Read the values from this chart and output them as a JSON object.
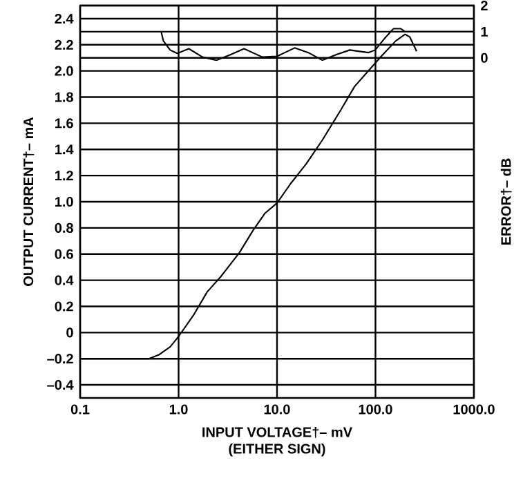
{
  "chart_data": {
    "type": "line",
    "xlabel": "INPUT VOLTAGE†– mV",
    "annotations": [
      "(EITHER SIGN)"
    ],
    "ylabel": "OUTPUT CURRENT†– mA",
    "y2label": "ERROR†– dB",
    "log": "x",
    "grid": true,
    "xlim": [
      0.1,
      1000
    ],
    "xticks": [
      {
        "value": 0.1,
        "label": "0.1"
      },
      {
        "value": 1,
        "label": "1.0"
      },
      {
        "value": 10,
        "label": "10.0"
      },
      {
        "value": 100,
        "label": "100.0"
      },
      {
        "value": 1000,
        "label": "1000.0"
      }
    ],
    "ylim": [
      -0.5,
      2.5
    ],
    "yticks": [
      {
        "value": -0.4,
        "label": "–0.4"
      },
      {
        "value": -0.2,
        "label": "–0.2"
      },
      {
        "value": 0,
        "label": "0"
      },
      {
        "value": 0.2,
        "label": "0.2"
      },
      {
        "value": 0.4,
        "label": "0.4"
      },
      {
        "value": 0.6,
        "label": "0.6"
      },
      {
        "value": 0.8,
        "label": "0.8"
      },
      {
        "value": 1.0,
        "label": "1.0"
      },
      {
        "value": 1.2,
        "label": "1.2"
      },
      {
        "value": 1.4,
        "label": "1.4"
      },
      {
        "value": 1.6,
        "label": "1.6"
      },
      {
        "value": 1.8,
        "label": "1.8"
      },
      {
        "value": 2.0,
        "label": "2.0"
      },
      {
        "value": 2.2,
        "label": "2.2"
      },
      {
        "value": 2.4,
        "label": "2.4"
      }
    ],
    "y2lim": [
      -13,
      2
    ],
    "y2ticks": [
      0,
      1,
      2
    ],
    "series": [
      {
        "color": "#000000",
        "x": [
          0.1,
          0.5,
          0.63,
          0.82,
          1.0,
          1.41,
          1.95,
          2.7,
          4.14,
          5.7,
          7.5,
          10,
          13.8,
          19.8,
          28.8,
          44.3,
          61.2,
          84.5,
          117,
          161,
          200,
          223,
          262
        ],
        "values": [
          -0.2,
          -0.2,
          -0.17,
          -0.11,
          -0.03,
          0.13,
          0.31,
          0.43,
          0.61,
          0.78,
          0.91,
          0.99,
          1.14,
          1.29,
          1.47,
          1.7,
          1.88,
          2.0,
          2.12,
          2.23,
          2.28,
          2.26,
          2.15
        ]
      },
      {
        "color": "#000000",
        "axis": "y2",
        "x": [
          0.665,
          0.7,
          0.82,
          0.97,
          1.27,
          1.75,
          2.42,
          3.35,
          4.62,
          7.1,
          10,
          15.1,
          20.8,
          28.8,
          39.7,
          54.8,
          84.5,
          99.3,
          123,
          153,
          180,
          200,
          1000
        ],
        "values": [
          1.0,
          0.65,
          0.3,
          0.17,
          0.35,
          0.03,
          -0.09,
          0.12,
          0.35,
          0.03,
          0.06,
          0.38,
          0.2,
          -0.09,
          0.12,
          0.3,
          0.2,
          0.3,
          0.73,
          1.12,
          1.12,
          1.0,
          1.0
        ]
      }
    ]
  }
}
